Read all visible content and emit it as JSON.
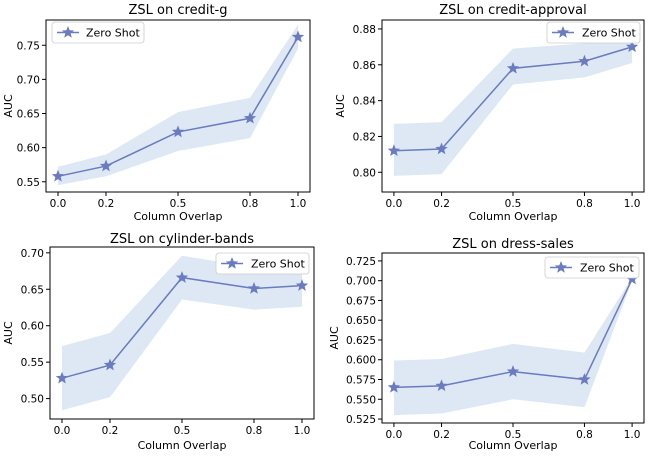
{
  "colors": {
    "line": "#6a7bbf",
    "band": "#dde8f4",
    "frame": "#000000",
    "legend_border": "#cccccc"
  },
  "chart_data": [
    {
      "type": "line",
      "title": "ZSL on credit-g",
      "xlabel": "Column Overlap",
      "ylabel": "AUC",
      "xlim": [
        -0.05,
        1.05
      ],
      "ylim": [
        0.535,
        0.787
      ],
      "xticks": [
        0.0,
        0.2,
        0.5,
        0.8,
        1.0
      ],
      "xtick_labels": [
        "0.0",
        "0.2",
        "0.5",
        "0.8",
        "1.0"
      ],
      "yticks": [
        0.55,
        0.6,
        0.65,
        0.7,
        0.75
      ],
      "ytick_labels": [
        "0.55",
        "0.60",
        "0.65",
        "0.70",
        "0.75"
      ],
      "legend": {
        "label": "Zero Shot",
        "placement": "top-left"
      },
      "series": [
        {
          "name": "Zero Shot",
          "marker": "star",
          "x": [
            0.0,
            0.2,
            0.5,
            0.8,
            1.0
          ],
          "y": [
            0.558,
            0.573,
            0.623,
            0.643,
            0.762
          ],
          "band_lower": [
            0.545,
            0.558,
            0.595,
            0.614,
            0.745
          ],
          "band_upper": [
            0.572,
            0.59,
            0.652,
            0.673,
            0.78
          ]
        }
      ]
    },
    {
      "type": "line",
      "title": "ZSL on credit-approval",
      "xlabel": "Column Overlap",
      "ylabel": "AUC",
      "xlim": [
        -0.05,
        1.05
      ],
      "ylim": [
        0.789,
        0.885
      ],
      "xticks": [
        0.0,
        0.2,
        0.5,
        0.8,
        1.0
      ],
      "xtick_labels": [
        "0.0",
        "0.2",
        "0.5",
        "0.8",
        "1.0"
      ],
      "yticks": [
        0.8,
        0.82,
        0.84,
        0.86,
        0.88
      ],
      "ytick_labels": [
        "0.80",
        "0.82",
        "0.84",
        "0.86",
        "0.88"
      ],
      "legend": {
        "label": "Zero Shot",
        "placement": "top-right"
      },
      "series": [
        {
          "name": "Zero Shot",
          "marker": "star",
          "x": [
            0.0,
            0.2,
            0.5,
            0.8,
            1.0
          ],
          "y": [
            0.812,
            0.813,
            0.858,
            0.862,
            0.87
          ],
          "band_lower": [
            0.798,
            0.799,
            0.849,
            0.853,
            0.861
          ],
          "band_upper": [
            0.827,
            0.828,
            0.869,
            0.872,
            0.88
          ]
        }
      ]
    },
    {
      "type": "line",
      "title": "ZSL on cylinder-bands",
      "xlabel": "Column Overlap",
      "ylabel": "AUC",
      "xlim": [
        -0.05,
        1.05
      ],
      "ylim": [
        0.472,
        0.708
      ],
      "xticks": [
        0.0,
        0.2,
        0.5,
        0.8,
        1.0
      ],
      "xtick_labels": [
        "0.0",
        "0.2",
        "0.5",
        "0.8",
        "1.0"
      ],
      "yticks": [
        0.5,
        0.55,
        0.6,
        0.65,
        0.7
      ],
      "ytick_labels": [
        "0.50",
        "0.55",
        "0.60",
        "0.65",
        "0.70"
      ],
      "legend": {
        "label": "Zero Shot",
        "placement": "top-right"
      },
      "series": [
        {
          "name": "Zero Shot",
          "marker": "star",
          "x": [
            0.0,
            0.2,
            0.5,
            0.8,
            1.0
          ],
          "y": [
            0.528,
            0.546,
            0.666,
            0.651,
            0.655
          ],
          "band_lower": [
            0.484,
            0.502,
            0.636,
            0.622,
            0.626
          ],
          "band_upper": [
            0.572,
            0.59,
            0.696,
            0.68,
            0.684
          ]
        }
      ]
    },
    {
      "type": "line",
      "title": "ZSL on dress-sales",
      "xlabel": "Column Overlap",
      "ylabel": "AUC",
      "xlim": [
        -0.05,
        1.05
      ],
      "ylim": [
        0.52,
        0.735
      ],
      "xticks": [
        0.0,
        0.2,
        0.5,
        0.8,
        1.0
      ],
      "xtick_labels": [
        "0.0",
        "0.2",
        "0.5",
        "0.8",
        "1.0"
      ],
      "yticks": [
        0.525,
        0.55,
        0.575,
        0.6,
        0.625,
        0.65,
        0.675,
        0.7,
        0.725
      ],
      "ytick_labels": [
        "0.525",
        "0.550",
        "0.575",
        "0.600",
        "0.625",
        "0.650",
        "0.675",
        "0.700",
        "0.725"
      ],
      "legend": {
        "label": "Zero Shot",
        "placement": "top-right"
      },
      "series": [
        {
          "name": "Zero Shot",
          "marker": "star",
          "x": [
            0.0,
            0.2,
            0.5,
            0.8,
            1.0
          ],
          "y": [
            0.565,
            0.567,
            0.585,
            0.575,
            0.702
          ],
          "band_lower": [
            0.53,
            0.532,
            0.55,
            0.54,
            0.7
          ],
          "band_upper": [
            0.599,
            0.601,
            0.62,
            0.609,
            0.704
          ]
        }
      ]
    }
  ]
}
